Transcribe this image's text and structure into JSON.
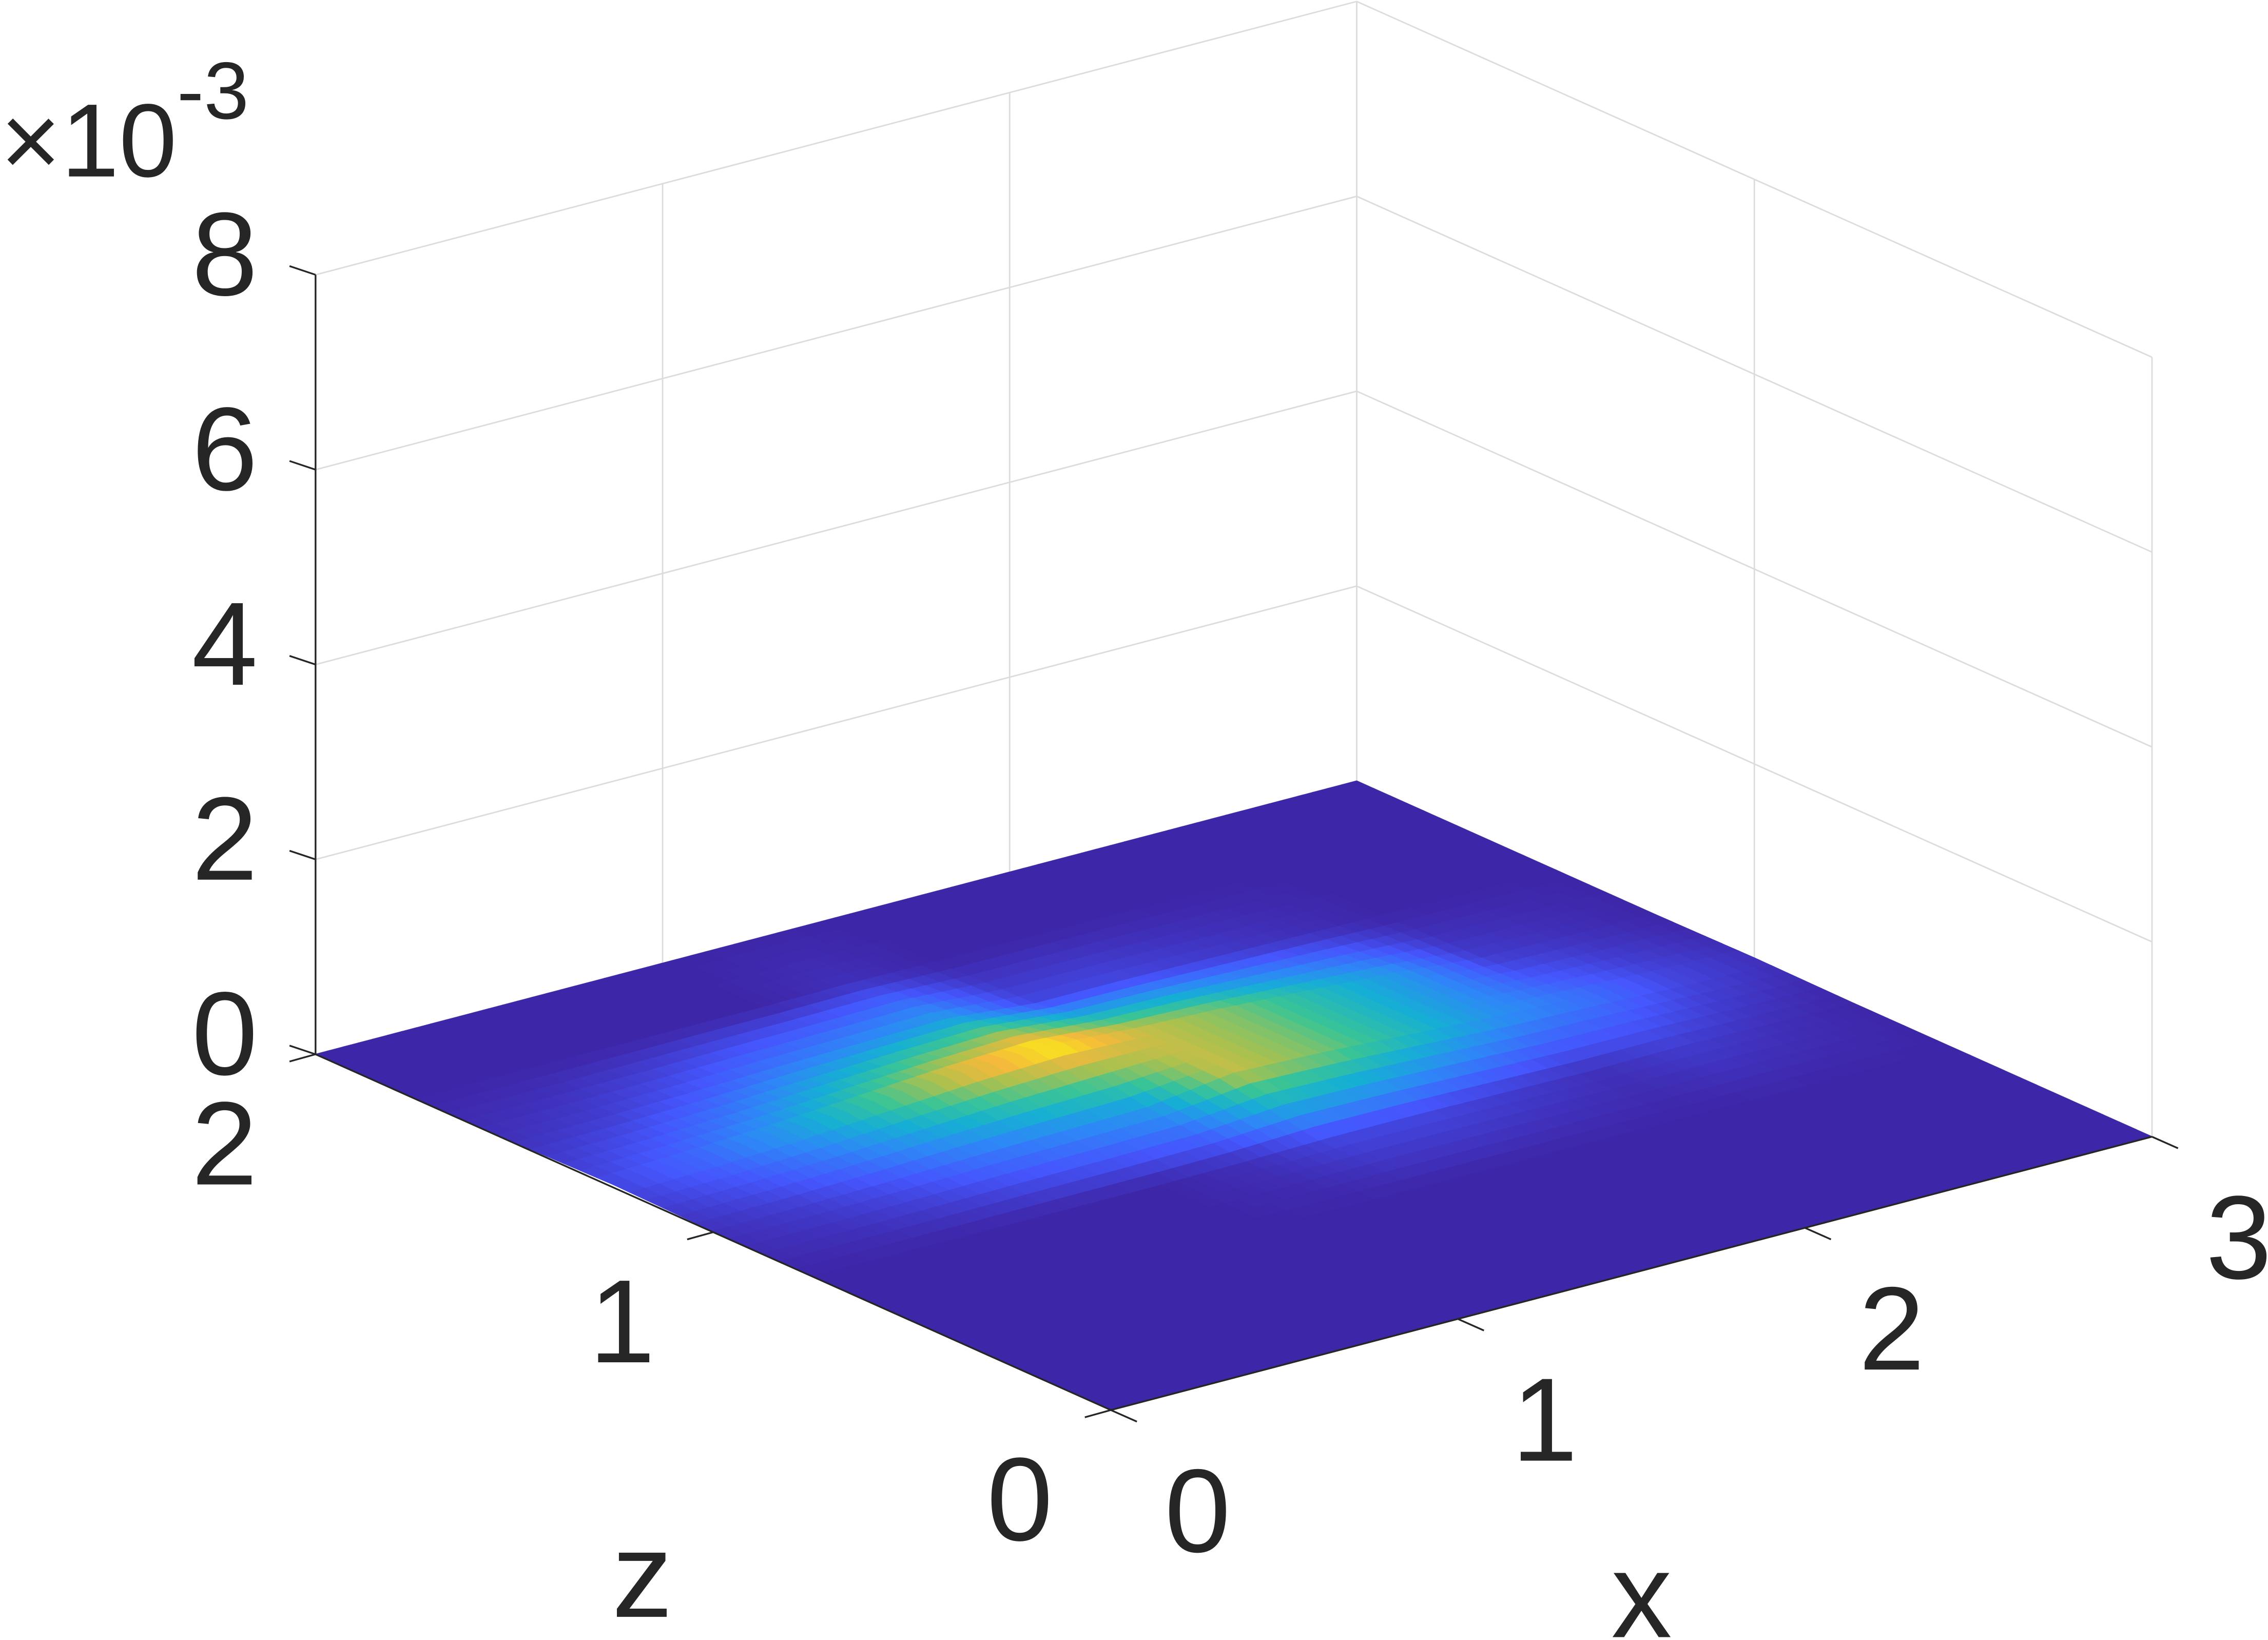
{
  "chart_data": {
    "type": "surface",
    "xlabel": "x",
    "ylabel": "z",
    "x": [
      0,
      0.25,
      0.5,
      0.75,
      1,
      1.25,
      1.5,
      1.75,
      2,
      2.25,
      2.5,
      2.75,
      3
    ],
    "y": [
      0,
      0.25,
      0.5,
      0.75,
      1,
      1.25,
      1.5,
      1.75,
      2
    ],
    "values": [
      [
        0,
        0,
        0,
        0,
        0,
        0,
        0,
        0,
        0,
        0,
        0,
        0,
        0
      ],
      [
        0,
        0,
        0,
        0,
        0,
        0,
        0,
        0,
        0,
        0,
        0,
        0,
        0
      ],
      [
        0,
        0,
        0,
        0,
        0,
        0,
        0,
        0,
        0,
        0,
        0,
        0,
        0
      ],
      [
        0,
        0,
        0,
        0,
        0,
        1e-05,
        3e-05,
        3e-05,
        2e-05,
        1e-05,
        2e-05,
        1e-05,
        0
      ],
      [
        1e-05,
        2e-05,
        4e-05,
        7e-05,
        9e-05,
        0.00011,
        0.00023,
        0.0002,
        0.00015,
        0.0001,
        7e-05,
        3e-05,
        1e-05
      ],
      [
        3e-05,
        6e-05,
        0.00011,
        0.00018,
        0.00025,
        0.00029,
        0.00023,
        0.0002,
        0.00015,
        0.0001,
        2e-05,
        1e-05,
        0
      ],
      [
        1e-05,
        2e-05,
        4e-05,
        7e-05,
        9e-05,
        0.00011,
        3e-05,
        3e-05,
        2e-05,
        1e-05,
        0,
        0,
        0
      ],
      [
        0,
        0,
        0,
        0,
        0,
        1e-05,
        0,
        0,
        0,
        0,
        0,
        0,
        0
      ],
      [
        0,
        0,
        0,
        0,
        0,
        0,
        0,
        0,
        0,
        0,
        0,
        0,
        0
      ]
    ],
    "colormap": "parula",
    "xlim": [
      0,
      3
    ],
    "xticks": [
      0,
      1,
      2,
      3
    ],
    "ylim": [
      0,
      2
    ],
    "yticks": [
      0,
      1,
      2
    ],
    "zlim": [
      0,
      0.008
    ],
    "zticks": [
      0,
      {
        "value": 0.002,
        "label": "2"
      },
      {
        "value": 0.004,
        "label": "4"
      },
      {
        "value": 0.006,
        "label": "6"
      },
      {
        "value": 0.008,
        "label": "8"
      }
    ],
    "z_exponent": {
      "base": "×10",
      "power": "-3"
    },
    "grid": true
  }
}
